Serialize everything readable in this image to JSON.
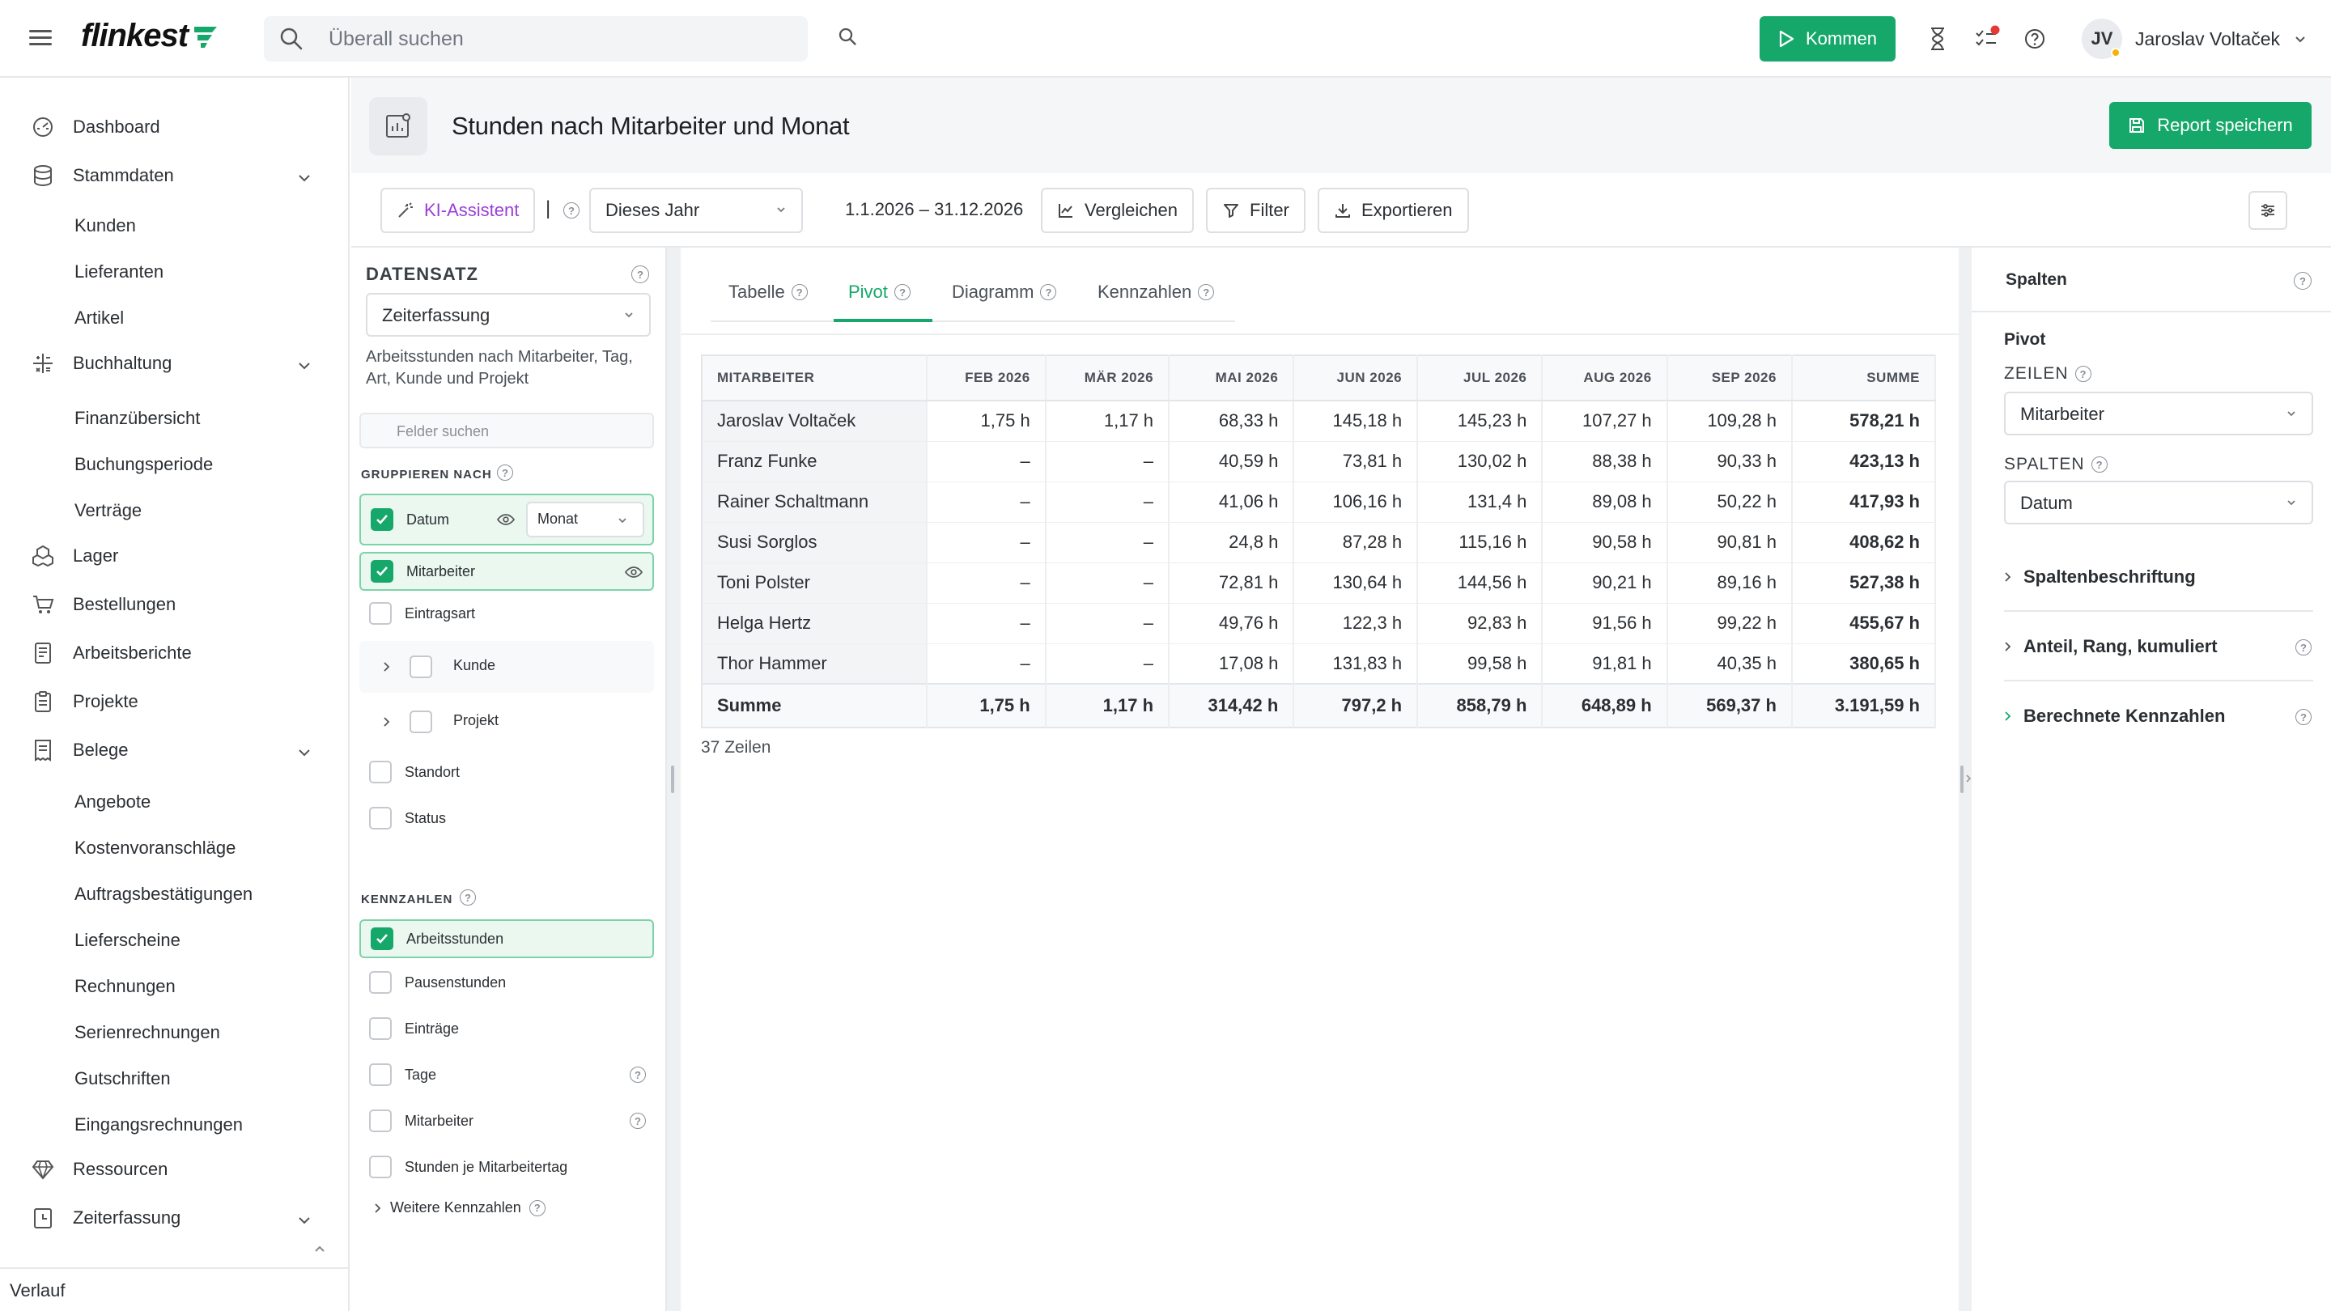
{
  "app": {
    "logo": "flinkest"
  },
  "search": {
    "placeholder": "Überall suchen"
  },
  "topbar": {
    "kommen_label": "Kommen",
    "user_initials": "JV",
    "user_name": "Jaroslav Voltaček"
  },
  "sidebar": {
    "items": [
      {
        "label": "Dashboard"
      },
      {
        "label": "Stammdaten"
      },
      {
        "label": "Kunden"
      },
      {
        "label": "Lieferanten"
      },
      {
        "label": "Artikel"
      },
      {
        "label": "Buchhaltung"
      },
      {
        "label": "Finanzübersicht"
      },
      {
        "label": "Buchungsperiode"
      },
      {
        "label": "Verträge"
      },
      {
        "label": "Lager"
      },
      {
        "label": "Bestellungen"
      },
      {
        "label": "Arbeitsberichte"
      },
      {
        "label": "Projekte"
      },
      {
        "label": "Belege"
      },
      {
        "label": "Angebote"
      },
      {
        "label": "Kostenvoranschläge"
      },
      {
        "label": "Auftragsbestätigungen"
      },
      {
        "label": "Lieferscheine"
      },
      {
        "label": "Rechnungen"
      },
      {
        "label": "Serienrechnungen"
      },
      {
        "label": "Gutschriften"
      },
      {
        "label": "Eingangsrechnungen"
      },
      {
        "label": "Ressourcen"
      },
      {
        "label": "Zeiterfassung"
      }
    ],
    "footer": "Verlauf"
  },
  "page": {
    "title": "Stunden nach Mitarbeiter und Monat",
    "save_label": "Report speichern"
  },
  "toolbar": {
    "ki_label": "KI-Assistent",
    "separator": "|",
    "period_value": "Dieses Jahr",
    "date_range": "1.1.2026 – 31.12.2026",
    "compare_label": "Vergleichen",
    "filter_label": "Filter",
    "export_label": "Exportieren"
  },
  "dataset": {
    "heading": "DATENSATZ",
    "selected": "Zeiterfassung",
    "description": "Arbeitsstunden nach Mitarbeiter, Tag, Art, Kunde und Projekt",
    "field_search_placeholder": "Felder suchen",
    "group_heading": "GRUPPIEREN NACH",
    "group_fields": {
      "datum": "Datum",
      "datum_granularity": "Monat",
      "mitarbeiter": "Mitarbeiter",
      "eintragsart": "Eintragsart",
      "kunde": "Kunde",
      "projekt": "Projekt",
      "standort": "Standort",
      "status": "Status"
    },
    "metrics_heading": "KENNZAHLEN",
    "metrics": {
      "arbeitsstunden": "Arbeitsstunden",
      "pausenstunden": "Pausenstunden",
      "eintraege": "Einträge",
      "tage": "Tage",
      "mitarbeiter": "Mitarbeiter",
      "stunden_je_tag": "Stunden je Mitarbeitertag"
    },
    "more_metrics": "Weitere Kennzahlen"
  },
  "tabs": {
    "tabelle": "Tabelle",
    "pivot": "Pivot",
    "diagramm": "Diagramm",
    "kennzahlen": "Kennzahlen"
  },
  "pivot_table": {
    "headers": [
      "MITARBEITER",
      "FEB 2026",
      "MÄR 2026",
      "MAI 2026",
      "JUN 2026",
      "JUL 2026",
      "AUG 2026",
      "SEP 2026",
      "SUMME"
    ],
    "rows": [
      [
        "Jaroslav Voltaček",
        "1,75 h",
        "1,17 h",
        "68,33 h",
        "145,18 h",
        "145,23 h",
        "107,27 h",
        "109,28 h",
        "578,21 h"
      ],
      [
        "Franz Funke",
        "–",
        "–",
        "40,59 h",
        "73,81 h",
        "130,02 h",
        "88,38 h",
        "90,33 h",
        "423,13 h"
      ],
      [
        "Rainer Schaltmann",
        "–",
        "–",
        "41,06 h",
        "106,16 h",
        "131,4 h",
        "89,08 h",
        "50,22 h",
        "417,93 h"
      ],
      [
        "Susi Sorglos",
        "–",
        "–",
        "24,8 h",
        "87,28 h",
        "115,16 h",
        "90,58 h",
        "90,81 h",
        "408,62 h"
      ],
      [
        "Toni Polster",
        "–",
        "–",
        "72,81 h",
        "130,64 h",
        "144,56 h",
        "90,21 h",
        "89,16 h",
        "527,38 h"
      ],
      [
        "Helga Hertz",
        "–",
        "–",
        "49,76 h",
        "122,3 h",
        "92,83 h",
        "91,56 h",
        "99,22 h",
        "455,67 h"
      ],
      [
        "Thor Hammer",
        "–",
        "–",
        "17,08 h",
        "131,83 h",
        "99,58 h",
        "91,81 h",
        "40,35 h",
        "380,65 h"
      ]
    ],
    "total": [
      "Summe",
      "1,75 h",
      "1,17 h",
      "314,42 h",
      "797,2 h",
      "858,79 h",
      "648,89 h",
      "569,37 h",
      "3.191,59 h"
    ],
    "row_count": "37 Zeilen"
  },
  "right_panel": {
    "heading": "Spalten",
    "pivot_label": "Pivot",
    "rows_label": "ZEILEN",
    "rows_value": "Mitarbeiter",
    "cols_label": "SPALTEN",
    "cols_value": "Datum",
    "sections": [
      "Spaltenbeschriftung",
      "Anteil, Rang, kumuliert",
      "Berechnete Kennzahlen"
    ]
  },
  "colors": {
    "accent": "#16a86a",
    "ki": "#9b3fd6",
    "notification": "#e53935"
  }
}
